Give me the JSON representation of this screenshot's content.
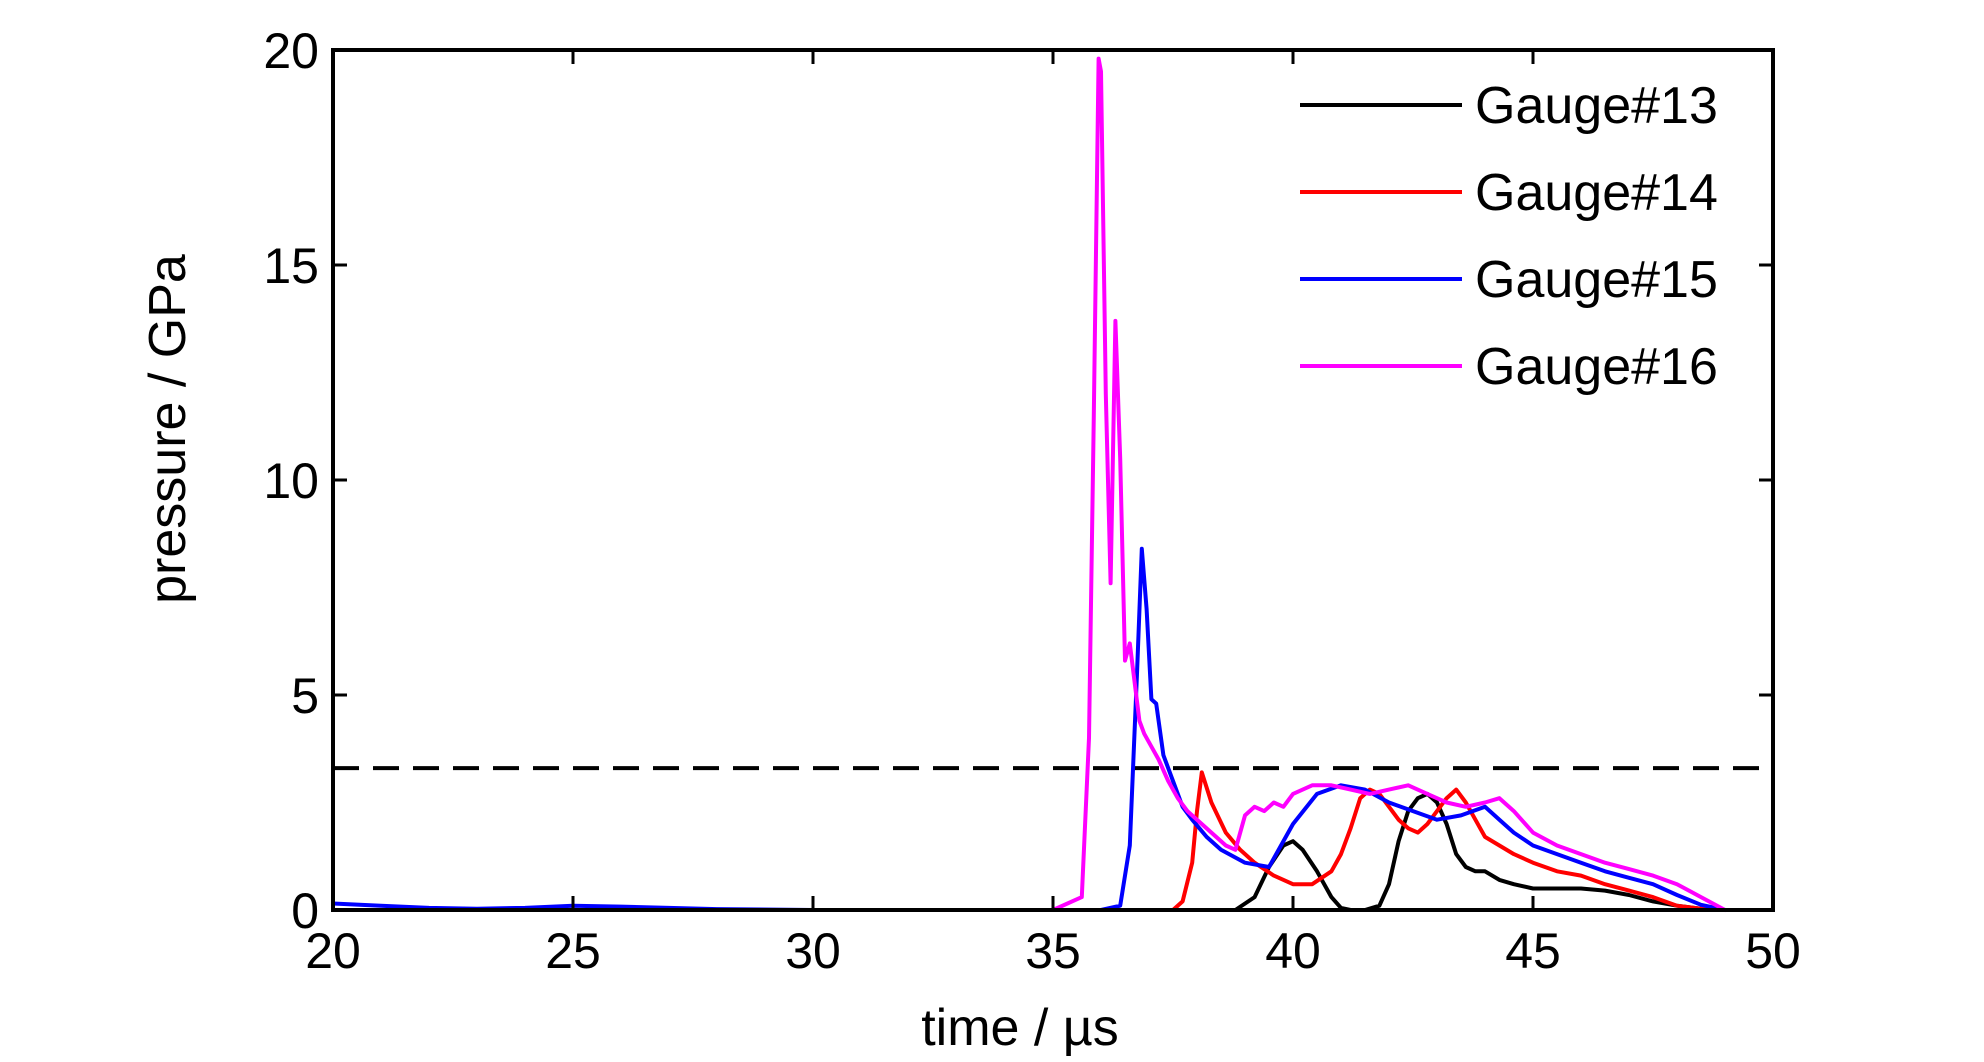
{
  "chart_data": {
    "type": "line",
    "title": "",
    "xlabel": "time / µs",
    "ylabel": "pressure / GPa",
    "xlim": [
      20,
      50
    ],
    "ylim": [
      0,
      20
    ],
    "x_ticks": [
      20,
      25,
      30,
      35,
      40,
      45,
      50
    ],
    "y_ticks": [
      0,
      5,
      10,
      15,
      20
    ],
    "x_tick_labels": [
      "20",
      "25",
      "30",
      "35",
      "40",
      "45",
      "50"
    ],
    "y_tick_labels": [
      "0",
      "5",
      "10",
      "15",
      "20"
    ],
    "grid": false,
    "legend_position": "top-right",
    "reference_line": {
      "y": 3.3,
      "style": "dashed",
      "color": "#000000"
    },
    "series": [
      {
        "name": "Gauge#13",
        "color": "#000000",
        "x": [
          20,
          38.8,
          39.2,
          39.5,
          39.8,
          40.0,
          40.2,
          40.5,
          40.8,
          41.0,
          41.2,
          41.5,
          41.8,
          42.0,
          42.2,
          42.4,
          42.6,
          42.8,
          43.0,
          43.2,
          43.4,
          43.6,
          43.8,
          44.0,
          44.3,
          44.6,
          45.0,
          45.5,
          46.0,
          46.5,
          47.0,
          47.5,
          48.0,
          48.5,
          49.0
        ],
        "y": [
          0,
          0,
          0.3,
          1.0,
          1.5,
          1.6,
          1.4,
          0.9,
          0.3,
          0.05,
          0,
          0,
          0.1,
          0.6,
          1.6,
          2.3,
          2.6,
          2.7,
          2.5,
          2.0,
          1.3,
          1.0,
          0.9,
          0.9,
          0.7,
          0.6,
          0.5,
          0.5,
          0.5,
          0.45,
          0.35,
          0.2,
          0.1,
          0.03,
          0
        ]
      },
      {
        "name": "Gauge#14",
        "color": "#ff0000",
        "x": [
          20,
          37.5,
          37.7,
          37.9,
          38.0,
          38.1,
          38.3,
          38.6,
          38.9,
          39.2,
          39.6,
          40.0,
          40.4,
          40.8,
          41.0,
          41.2,
          41.4,
          41.6,
          41.8,
          42.0,
          42.2,
          42.4,
          42.6,
          42.8,
          43.0,
          43.2,
          43.4,
          43.6,
          43.8,
          44.0,
          44.3,
          44.6,
          45.0,
          45.5,
          46.0,
          46.5,
          47.0,
          47.5,
          48.0,
          48.5,
          49.0
        ],
        "y": [
          0,
          0,
          0.2,
          1.1,
          2.3,
          3.2,
          2.5,
          1.8,
          1.4,
          1.1,
          0.8,
          0.6,
          0.6,
          0.9,
          1.3,
          1.9,
          2.6,
          2.8,
          2.7,
          2.4,
          2.1,
          1.9,
          1.8,
          2.0,
          2.3,
          2.6,
          2.8,
          2.5,
          2.1,
          1.7,
          1.5,
          1.3,
          1.1,
          0.9,
          0.8,
          0.6,
          0.45,
          0.3,
          0.1,
          0.03,
          0
        ]
      },
      {
        "name": "Gauge#15",
        "color": "#0000ff",
        "x": [
          20,
          21,
          22,
          23,
          24,
          25,
          26,
          27,
          28,
          30,
          32,
          34,
          36.0,
          36.4,
          36.6,
          36.75,
          36.85,
          36.95,
          37.05,
          37.15,
          37.3,
          37.5,
          37.7,
          37.9,
          38.2,
          38.5,
          39.0,
          39.5,
          40.0,
          40.5,
          41.0,
          41.5,
          42.0,
          42.5,
          43.0,
          43.5,
          44.0,
          44.3,
          44.6,
          45.0,
          45.5,
          46.0,
          46.5,
          47.0,
          47.5,
          48.0,
          48.5,
          49.0
        ],
        "y": [
          0.15,
          0.1,
          0.05,
          0.03,
          0.05,
          0.1,
          0.08,
          0.05,
          0.02,
          0,
          0,
          0,
          0,
          0.1,
          1.5,
          5.5,
          8.4,
          7.0,
          4.9,
          4.8,
          3.6,
          3.0,
          2.4,
          2.1,
          1.7,
          1.4,
          1.1,
          1.0,
          2.0,
          2.7,
          2.9,
          2.8,
          2.5,
          2.3,
          2.1,
          2.2,
          2.4,
          2.1,
          1.8,
          1.5,
          1.3,
          1.1,
          0.9,
          0.75,
          0.6,
          0.35,
          0.12,
          0
        ]
      },
      {
        "name": "Gauge#16",
        "color": "#ff00ff",
        "x": [
          20,
          25,
          30,
          35,
          35.6,
          35.75,
          35.85,
          35.95,
          36.0,
          36.1,
          36.2,
          36.3,
          36.4,
          36.5,
          36.6,
          36.7,
          36.8,
          36.9,
          37.0,
          37.2,
          37.4,
          37.6,
          37.8,
          38.0,
          38.3,
          38.6,
          38.8,
          39.0,
          39.2,
          39.4,
          39.6,
          39.8,
          40.0,
          40.4,
          40.8,
          41.2,
          41.6,
          42.0,
          42.4,
          42.8,
          43.2,
          43.6,
          44.0,
          44.3,
          44.6,
          45.0,
          45.5,
          46.0,
          46.5,
          47.0,
          47.5,
          48.0,
          48.5,
          49.0
        ],
        "y": [
          0,
          0,
          0,
          0,
          0.3,
          4.0,
          11.5,
          19.8,
          19.5,
          12.0,
          7.6,
          13.7,
          10.5,
          5.8,
          6.2,
          5.3,
          4.4,
          4.1,
          3.9,
          3.5,
          3.0,
          2.6,
          2.3,
          2.1,
          1.8,
          1.5,
          1.4,
          2.2,
          2.4,
          2.3,
          2.5,
          2.4,
          2.7,
          2.9,
          2.9,
          2.8,
          2.7,
          2.8,
          2.9,
          2.7,
          2.5,
          2.4,
          2.5,
          2.6,
          2.3,
          1.8,
          1.5,
          1.3,
          1.1,
          0.95,
          0.8,
          0.6,
          0.3,
          0
        ]
      }
    ]
  }
}
